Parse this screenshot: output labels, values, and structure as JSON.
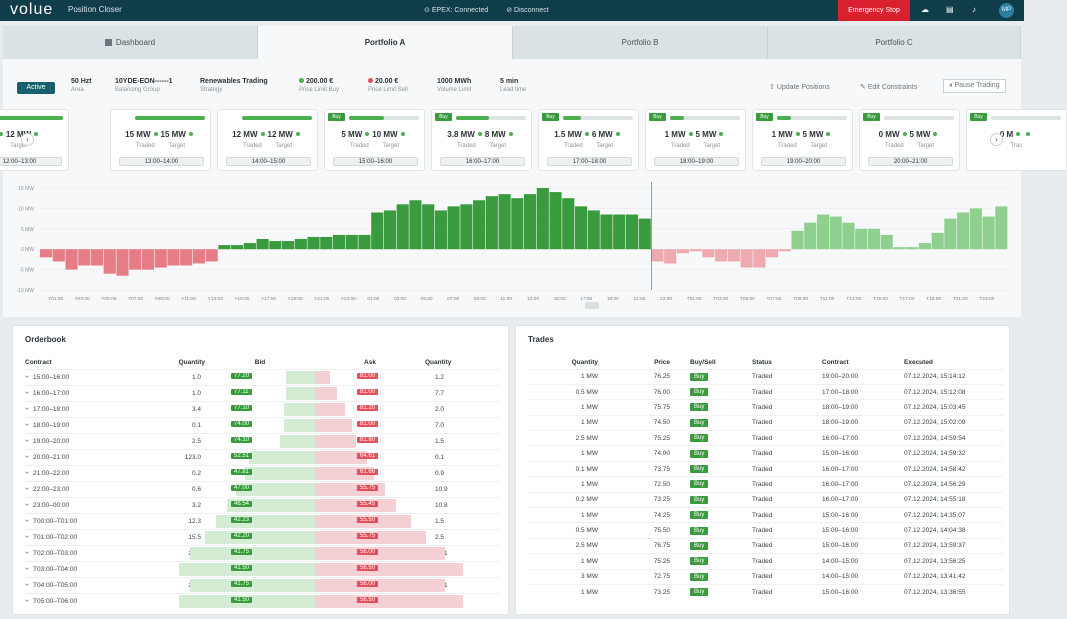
{
  "topbar": {
    "logo": "volue",
    "title": "Position Closer",
    "connected": "EPEX: Connected",
    "disconnect": "Disconnect",
    "emergency": "Emergency Stop",
    "user_initials": "MP"
  },
  "tabs": [
    {
      "label": "Dashboard"
    },
    {
      "label": "Portfolio A"
    },
    {
      "label": "Portfolio B"
    },
    {
      "label": "Portfolio C"
    }
  ],
  "info": {
    "status": "Active",
    "area": {
      "value": "50 Hzt",
      "label": "Area"
    },
    "bg": {
      "value": "10YDE-EON------1",
      "label": "Balancing Group"
    },
    "strategy": {
      "value": "Renewables Trading",
      "label": "Strategy"
    },
    "buy_limit": {
      "value": "200.00 €",
      "label": "Price Limit Buy"
    },
    "sell_limit": {
      "value": "20.00 €",
      "label": "Price Limit Sell"
    },
    "volume": {
      "value": "1000 MWh",
      "label": "Volume Limit"
    },
    "lead": {
      "value": "5 min",
      "label": "Lead time"
    }
  },
  "actions": {
    "update": "Update Positions",
    "edit": "Edit Constraints",
    "pause": "Pause Trading"
  },
  "cards": [
    {
      "buy": "",
      "traded": "",
      "target": "12 MW",
      "tl": "",
      "gl": "Target",
      "range": "12:00–13:00",
      "fill": 1.0
    },
    {
      "buy": "",
      "traded": "15 MW",
      "target": "15 MW",
      "tl": "Traded",
      "gl": "Target",
      "range": "13:00–14:00",
      "fill": 1.0
    },
    {
      "buy": "",
      "traded": "12 MW",
      "target": "12 MW",
      "tl": "Traded",
      "gl": "Target",
      "range": "14:00–15:00",
      "fill": 1.0
    },
    {
      "buy": "Buy",
      "traded": "5 MW",
      "target": "10 MW",
      "tl": "Traded",
      "gl": "Target",
      "range": "15:00–16:00",
      "fill": 0.5
    },
    {
      "buy": "Buy",
      "traded": "3.8 MW",
      "target": "8 MW",
      "tl": "Traded",
      "gl": "Target",
      "range": "16:00–17:00",
      "fill": 0.47
    },
    {
      "buy": "Buy",
      "traded": "1.5 MW",
      "target": "6 MW",
      "tl": "Traded",
      "gl": "Target",
      "range": "17:00–18:00",
      "fill": 0.25
    },
    {
      "buy": "Buy",
      "traded": "1 MW",
      "target": "5 MW",
      "tl": "Traded",
      "gl": "Target",
      "range": "18:00–19:00",
      "fill": 0.2
    },
    {
      "buy": "Buy",
      "traded": "1 MW",
      "target": "5 MW",
      "tl": "Traded",
      "gl": "Target",
      "range": "19:00–20:00",
      "fill": 0.2
    },
    {
      "buy": "Buy",
      "traded": "0 MW",
      "target": "5 MW",
      "tl": "Traded",
      "gl": "Target",
      "range": "20:00–21:00",
      "fill": 0.0
    },
    {
      "buy": "Buy",
      "traded": "0 M",
      "target": "",
      "tl": "Trac",
      "gl": "",
      "range": "",
      "fill": 0.0
    }
  ],
  "chart_data": {
    "type": "bar",
    "ylim": [
      -10,
      15
    ],
    "yticks": [
      "15 MW",
      "10 MW",
      "5 MW",
      "0 MW",
      "-5 MW",
      "-10 MW"
    ],
    "x_ticks": [
      "Y01:00",
      "Y03:00",
      "Y05:00",
      "Y07:00",
      "Y09:00",
      "Y11:00",
      "Y13:00",
      "Y15:00",
      "Y17:00",
      "Y19:00",
      "Y21:00",
      "Y23:00",
      "01:00",
      "03:00",
      "05:00",
      "07:00",
      "09:00",
      "11:00",
      "13:00",
      "15:00",
      "17:00",
      "19:00",
      "21:00",
      "23:00",
      "T01:00",
      "T03:00",
      "T05:00",
      "T07:00",
      "T09:00",
      "T11:00",
      "T13:00",
      "T15:00",
      "T17:00",
      "T19:00",
      "T21:00",
      "T23:00"
    ],
    "series": [
      {
        "values": [
          -2,
          -3,
          -5,
          -4,
          -4,
          -6,
          -6.5,
          -5,
          -5,
          -4.5,
          -4,
          -4,
          -3.5,
          -3,
          1,
          1,
          1.5,
          2.5,
          2,
          2,
          2.5,
          3,
          3,
          3.5,
          3.5,
          3.5,
          9,
          9.5,
          11,
          12,
          11,
          9.5,
          10.5,
          11,
          12,
          13,
          13.5,
          12.5,
          13.5,
          15,
          14,
          12.5,
          10.5,
          9.5,
          8.5,
          8.5,
          8.5,
          7.5,
          -3,
          -3.5,
          -1,
          -0.5,
          -2,
          -3,
          -3,
          -4.5,
          -4.5,
          -2,
          -0.5,
          4.5,
          6.5,
          8.5,
          8,
          6.5,
          5,
          5,
          3.5,
          0.5,
          0.5,
          1.5,
          4,
          7.5,
          9,
          10,
          8,
          10.5
        ]
      }
    ]
  },
  "orderbook": {
    "title": "Orderbook",
    "headers": [
      "Contract",
      "Quantity",
      "Bid",
      "Ask",
      "Quantity"
    ],
    "rows": [
      {
        "contract": "15:00–16:00",
        "q1": "1.0",
        "bid": "77.20",
        "ask": "81.00",
        "q2": "1.2",
        "bd": 0.13,
        "ad": 0.04
      },
      {
        "contract": "16:00–17:00",
        "q1": "1.0",
        "bid": "77.11",
        "ask": "81.00",
        "q2": "7.7",
        "bd": 0.13,
        "ad": 0.06
      },
      {
        "contract": "17:00–18:00",
        "q1": "3.4",
        "bid": "77.10",
        "ask": "81.20",
        "q2": "2.0",
        "bd": 0.14,
        "ad": 0.08
      },
      {
        "contract": "18:00–19:00",
        "q1": "0.1",
        "bid": "74.00",
        "ask": "81.00",
        "q2": "7.0",
        "bd": 0.14,
        "ad": 0.1
      },
      {
        "contract": "19:00–20:00",
        "q1": "2.5",
        "bid": "74.10",
        "ask": "81.80",
        "q2": "1.5",
        "bd": 0.16,
        "ad": 0.11
      },
      {
        "contract": "20:00–21:00",
        "q1": "123.0",
        "bid": "52.51",
        "ask": "64.61",
        "q2": "0.1",
        "bd": 0.3,
        "ad": 0.14
      },
      {
        "contract": "21:00–22:00",
        "q1": "0.2",
        "bid": "47.81",
        "ask": "61.66",
        "q2": "0.9",
        "bd": 0.32,
        "ad": 0.16
      },
      {
        "contract": "22:00–23:00",
        "q1": "0.6",
        "bid": "47.00",
        "ask": "55.75",
        "q2": "10.9",
        "bd": 0.36,
        "ad": 0.19
      },
      {
        "contract": "23:00–00:00",
        "q1": "3.2",
        "bid": "46.54",
        "ask": "55.45",
        "q2": "10.8",
        "bd": 0.4,
        "ad": 0.22
      },
      {
        "contract": "T00:00–T01:00",
        "q1": "12.3",
        "bid": "42.23",
        "ask": "55.50",
        "q2": "1.5",
        "bd": 0.45,
        "ad": 0.26
      },
      {
        "contract": "T01:00–T02:00",
        "q1": "15.5",
        "bid": "42.20",
        "ask": "55.75",
        "q2": "2.5",
        "bd": 0.5,
        "ad": 0.3
      },
      {
        "contract": "T02:00–T03:00",
        "q1": "21.1",
        "bid": "41.75",
        "ask": "56.00",
        "q2": "10.1",
        "bd": 0.57,
        "ad": 0.35
      },
      {
        "contract": "T03:00–T04:00",
        "q1": "23.5",
        "bid": "41.50",
        "ask": "56.50",
        "q2": "15.5",
        "bd": 0.62,
        "ad": 0.4
      },
      {
        "contract": "T04:00–T05:00",
        "q1": "21.1",
        "bid": "41.75",
        "ask": "56.00",
        "q2": "10.1",
        "bd": 0.57,
        "ad": 0.35
      },
      {
        "contract": "T05:00–T06:00",
        "q1": "23.5",
        "bid": "41.50",
        "ask": "56.50",
        "q2": "15.5",
        "bd": 0.62,
        "ad": 0.4
      }
    ]
  },
  "trades": {
    "title": "Trades",
    "headers": [
      "Quantity",
      "Price",
      "Buy/Sell",
      "Status",
      "Contract",
      "Executed"
    ],
    "rows": [
      {
        "qty": "1 MW",
        "price": "76.25",
        "side": "Buy",
        "status": "Traded",
        "contract": "19:00–20:00",
        "time": "07.12.2024, 15:14:12"
      },
      {
        "qty": "0.5 MW",
        "price": "76.00",
        "side": "Buy",
        "status": "Traded",
        "contract": "17:00–18:00",
        "time": "07.12.2024, 15:12:08"
      },
      {
        "qty": "1 MW",
        "price": "75.75",
        "side": "Buy",
        "status": "Traded",
        "contract": "18:00–19:00",
        "time": "07.12.2024, 15:03:45"
      },
      {
        "qty": "1 MW",
        "price": "74.50",
        "side": "Buy",
        "status": "Traded",
        "contract": "18:00–19:00",
        "time": "07.12.2024, 15:02:09"
      },
      {
        "qty": "2.5 MW",
        "price": "75.25",
        "side": "Buy",
        "status": "Traded",
        "contract": "16:00–17:00",
        "time": "07.12.2024, 14:59:54"
      },
      {
        "qty": "1 MW",
        "price": "74.00",
        "side": "Buy",
        "status": "Traded",
        "contract": "15:00–16:00",
        "time": "07.12.2024, 14:59:32"
      },
      {
        "qty": "0.1 MW",
        "price": "73.75",
        "side": "Buy",
        "status": "Traded",
        "contract": "16:00–17:00",
        "time": "07.12.2024, 14:58:42"
      },
      {
        "qty": "1 MW",
        "price": "72.50",
        "side": "Buy",
        "status": "Traded",
        "contract": "16:00–17:00",
        "time": "07.12.2024, 14:56:29"
      },
      {
        "qty": "0.2 MW",
        "price": "73.25",
        "side": "Buy",
        "status": "Traded",
        "contract": "16:00–17:00",
        "time": "07.12.2024, 14:55:18"
      },
      {
        "qty": "1 MW",
        "price": "74.25",
        "side": "Buy",
        "status": "Traded",
        "contract": "15:00–16:00",
        "time": "07.12.2024, 14:35:07"
      },
      {
        "qty": "0.5 MW",
        "price": "75.50",
        "side": "Buy",
        "status": "Traded",
        "contract": "15:00–16:00",
        "time": "07.12.2024, 14:04:38"
      },
      {
        "qty": "2.5 MW",
        "price": "76.75",
        "side": "Buy",
        "status": "Traded",
        "contract": "15:00–16:00",
        "time": "07.12.2024, 13:59:37"
      },
      {
        "qty": "1 MW",
        "price": "75.25",
        "side": "Buy",
        "status": "Traded",
        "contract": "14:00–15:00",
        "time": "07.12.2024, 13:56:25"
      },
      {
        "qty": "3 MW",
        "price": "72.75",
        "side": "Buy",
        "status": "Traded",
        "contract": "14:00–15:00",
        "time": "07.12.2024, 13:41:42"
      },
      {
        "qty": "1 MW",
        "price": "73.25",
        "side": "Buy",
        "status": "Traded",
        "contract": "15:00–16:00",
        "time": "07.12.2024, 13:36:55"
      }
    ]
  }
}
